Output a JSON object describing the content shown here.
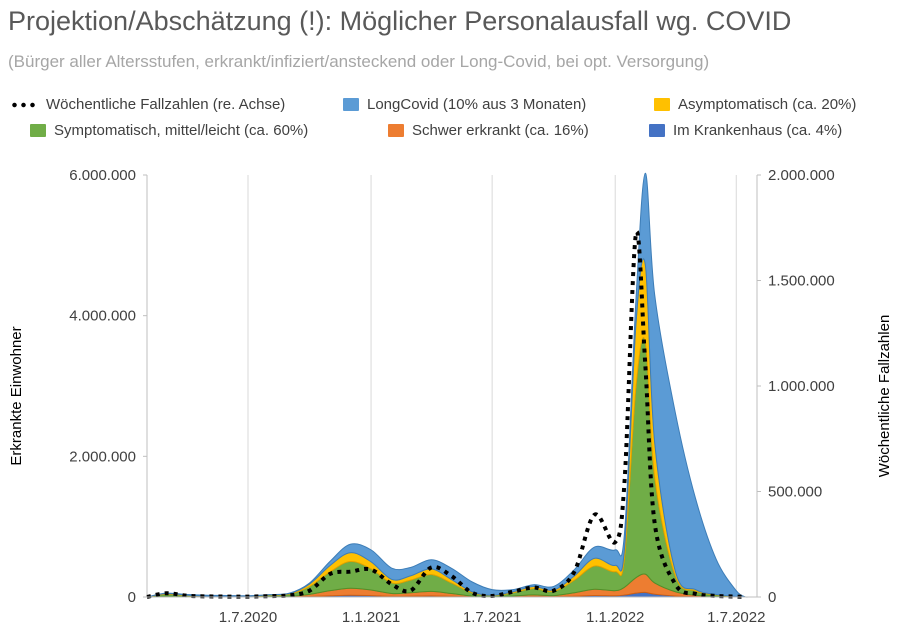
{
  "page": {
    "title": "Projektion/Abschätzung (!): Möglicher Personalausfall wg. COVID",
    "subtitle": "(Bürger aller Altersstufen, erkrankt/infiziert/ansteckend oder Long-Covid, bei opt. Versorgung)"
  },
  "legend": {
    "items": [
      {
        "label": "Wöchentliche Fallzahlen (re. Achse)",
        "color": "#000000",
        "kind": "dots"
      },
      {
        "label": "LongCovid (10% aus 3 Monaten)",
        "color": "#5b9bd5",
        "kind": "swatch"
      },
      {
        "label": "Asymptomatisch (ca. 20%)",
        "color": "#ffc000",
        "kind": "swatch"
      },
      {
        "label": "Symptomatisch, mittel/leicht (ca. 60%)",
        "color": "#70ad47",
        "kind": "swatch"
      },
      {
        "label": "Schwer erkrankt (ca. 16%)",
        "color": "#ed7d31",
        "kind": "swatch"
      },
      {
        "label": "Im Krankenhaus (ca. 4%)",
        "color": "#4472c4",
        "kind": "swatch"
      }
    ]
  },
  "chart_data": {
    "type": "area",
    "stacked": true,
    "xlabel": "",
    "ylabel": "Erkrankte Einwohner",
    "y2label": "Wöchentliche Fallzahlen",
    "ylim": [
      0,
      6000000
    ],
    "y2lim": [
      0,
      2000000
    ],
    "yticks": [
      0,
      2000000,
      4000000,
      6000000
    ],
    "yticklabels": [
      "0",
      "2.000.000",
      "4.000.000",
      "6.000.000"
    ],
    "y2ticks": [
      0,
      500000,
      1000000,
      1500000,
      2000000
    ],
    "y2ticklabels": [
      "0",
      "500.000",
      "1.000.000",
      "1.500.000",
      "2.000.000"
    ],
    "xlim": [
      "2020-02-01",
      "2022-08-01"
    ],
    "xticks": [
      "2020-07-01",
      "2021-01-01",
      "2021-07-01",
      "2022-01-01",
      "2022-07-01"
    ],
    "xticklabels": [
      "1.7.2020",
      "1.1.2021",
      "1.7.2021",
      "1.1.2022",
      "1.7.2022"
    ],
    "grid": "vertical",
    "legend_position": "top",
    "x": [
      "2020-02-01",
      "2020-03-01",
      "2020-04-01",
      "2020-05-01",
      "2020-06-01",
      "2020-07-01",
      "2020-08-01",
      "2020-09-01",
      "2020-10-01",
      "2020-11-01",
      "2020-12-01",
      "2021-01-01",
      "2021-02-01",
      "2021-03-01",
      "2021-04-01",
      "2021-05-01",
      "2021-06-01",
      "2021-07-01",
      "2021-08-01",
      "2021-09-01",
      "2021-10-01",
      "2021-11-01",
      "2021-12-01",
      "2022-01-01",
      "2022-01-15",
      "2022-02-01",
      "2022-02-15",
      "2022-03-01",
      "2022-04-01",
      "2022-05-01",
      "2022-06-01",
      "2022-07-01",
      "2022-07-15"
    ],
    "series": [
      {
        "name": "Im Krankenhaus (ca. 4%)",
        "color": "#4472c4",
        "values": [
          0,
          2000,
          1000,
          500,
          500,
          500,
          1000,
          2000,
          8000,
          18000,
          25000,
          20000,
          10000,
          12000,
          16000,
          10000,
          3000,
          1000,
          3000,
          6000,
          4000,
          12000,
          22000,
          18000,
          28000,
          55000,
          65000,
          40000,
          15000,
          5000,
          2000,
          500,
          0
        ]
      },
      {
        "name": "Schwer erkrankt (ca. 16%)",
        "color": "#ed7d31",
        "values": [
          0,
          8000,
          4000,
          2000,
          2000,
          2000,
          5000,
          8000,
          30000,
          72000,
          100000,
          80000,
          40000,
          48000,
          64000,
          40000,
          12000,
          4000,
          12000,
          24000,
          16000,
          48000,
          88000,
          72000,
          112000,
          220000,
          260000,
          160000,
          60000,
          20000,
          8000,
          2000,
          0
        ]
      },
      {
        "name": "Symptomatisch, mittel/leicht (ca. 60%)",
        "color": "#70ad47",
        "values": [
          0,
          30000,
          15000,
          8000,
          8000,
          8000,
          18000,
          30000,
          110000,
          270000,
          380000,
          300000,
          150000,
          180000,
          240000,
          150000,
          45000,
          15000,
          45000,
          90000,
          60000,
          180000,
          330000,
          270000,
          420000,
          2700000,
          3300000,
          1500000,
          220000,
          60000,
          20000,
          5000,
          0
        ]
      },
      {
        "name": "Asymptomatisch (ca. 20%)",
        "color": "#ffc000",
        "values": [
          0,
          10000,
          5000,
          3000,
          3000,
          3000,
          6000,
          10000,
          36000,
          90000,
          125000,
          100000,
          50000,
          60000,
          80000,
          50000,
          15000,
          5000,
          15000,
          30000,
          20000,
          60000,
          110000,
          90000,
          140000,
          900000,
          1100000,
          500000,
          70000,
          20000,
          6000,
          2000,
          0
        ]
      },
      {
        "name": "LongCovid (10% aus 3 Monaten)",
        "color": "#5b9bd5",
        "values": [
          0,
          5000,
          10000,
          12000,
          8000,
          4000,
          3000,
          5000,
          15000,
          60000,
          120000,
          170000,
          160000,
          120000,
          130000,
          160000,
          140000,
          80000,
          30000,
          25000,
          50000,
          90000,
          160000,
          220000,
          220000,
          350000,
          1300000,
          2100000,
          2250000,
          1300000,
          500000,
          80000,
          0
        ]
      },
      {
        "name": "Wöchentliche Fallzahlen (re. Achse)",
        "color": "#000000",
        "axis": "right",
        "style": "dotted",
        "values": [
          0,
          18000,
          6000,
          3000,
          2000,
          2000,
          4000,
          8000,
          30000,
          110000,
          120000,
          130000,
          60000,
          30000,
          140000,
          100000,
          20000,
          5000,
          25000,
          45000,
          30000,
          120000,
          390000,
          260000,
          550000,
          1720000,
          1100000,
          350000,
          60000,
          15000,
          5000,
          2000,
          0
        ]
      }
    ]
  }
}
